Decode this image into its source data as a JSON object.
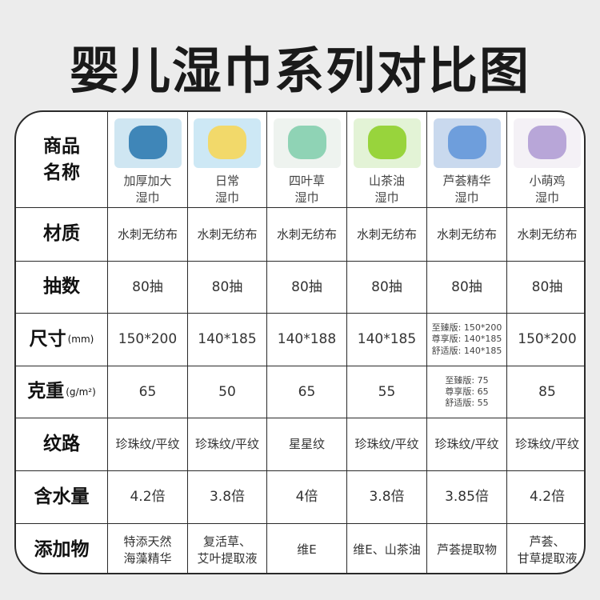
{
  "title": "婴儿湿巾系列对比图",
  "row_labels": {
    "name": "商品名称",
    "material": "材质",
    "count": "抽数",
    "size": "尺寸",
    "size_unit": "(mm)",
    "weight": "克重",
    "weight_unit": "(g/m²)",
    "texture": "纹路",
    "water": "含水量",
    "additive": "添加物"
  },
  "products": [
    {
      "name1": "加厚加大",
      "name2": "湿巾",
      "pack_color": "#cfe6f2",
      "lid_color": "#3f86b8",
      "material": "水刺无纺布",
      "count": "80抽",
      "size": "150*200",
      "weight": "65",
      "texture": "珍珠纹/平纹",
      "water": "4.2倍",
      "additive1": "特添天然",
      "additive2": "海藻精华"
    },
    {
      "name1": "日常",
      "name2": "湿巾",
      "pack_color": "#cde8f5",
      "lid_color": "#f2d96a",
      "material": "水刺无纺布",
      "count": "80抽",
      "size": "140*185",
      "weight": "50",
      "texture": "珍珠纹/平纹",
      "water": "3.8倍",
      "additive1": "复活草、",
      "additive2": "艾叶提取液"
    },
    {
      "name1": "四叶草",
      "name2": "湿巾",
      "pack_color": "#eef3ef",
      "lid_color": "#8fd3b5",
      "material": "水刺无纺布",
      "count": "80抽",
      "size": "140*188",
      "weight": "65",
      "texture": "星星纹",
      "water": "4倍",
      "additive1": "维E",
      "additive2": ""
    },
    {
      "name1": "山茶油",
      "name2": "湿巾",
      "pack_color": "#e3f3d6",
      "lid_color": "#98d43c",
      "material": "水刺无纺布",
      "count": "80抽",
      "size": "140*185",
      "weight": "55",
      "texture": "珍珠纹/平纹",
      "water": "3.8倍",
      "additive1": "维E、山茶油",
      "additive2": ""
    },
    {
      "name1": "芦荟精华",
      "name2": "湿巾",
      "pack_color": "#c9d9ee",
      "lid_color": "#6e9edc",
      "material": "水刺无纺布",
      "count": "80抽",
      "size_lines": [
        "至臻版: 150*200",
        "尊享版: 140*185",
        "舒适版: 140*185"
      ],
      "weight_lines": [
        "至臻版: 75",
        "尊享版: 65",
        "舒适版: 55"
      ],
      "texture": "珍珠纹/平纹",
      "water": "3.85倍",
      "additive1": "芦荟提取物",
      "additive2": ""
    },
    {
      "name1": "小萌鸡",
      "name2": "湿巾",
      "pack_color": "#f4f1f6",
      "lid_color": "#b8a6d8",
      "material": "水刺无纺布",
      "count": "80抽",
      "size": "150*200",
      "weight": "85",
      "texture": "珍珠纹/平纹",
      "water": "4.2倍",
      "additive1": "芦荟、",
      "additive2": "甘草提取液"
    }
  ]
}
